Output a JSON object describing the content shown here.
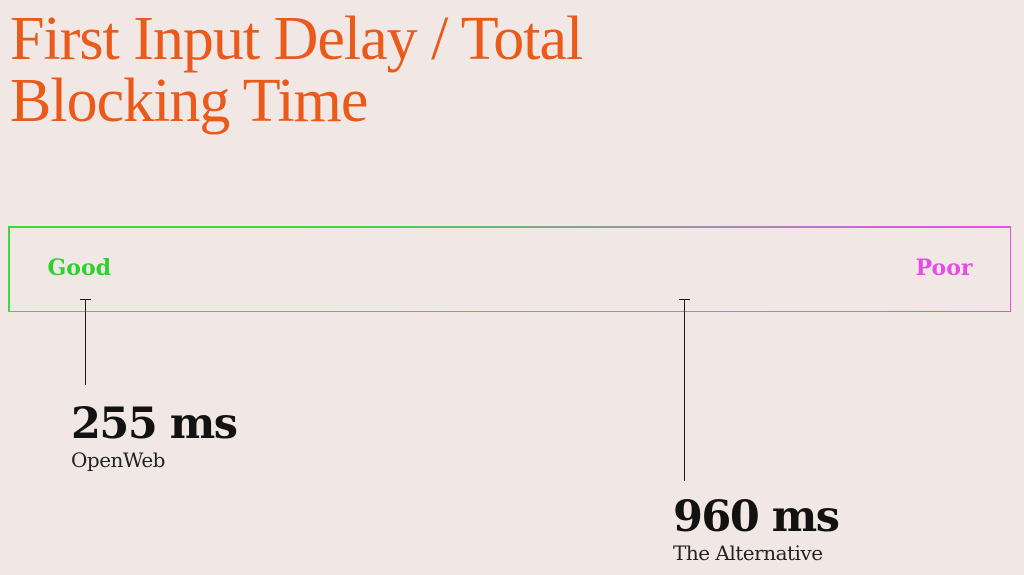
{
  "title": "First Input Delay / Total Blocking Time",
  "scale": {
    "good_label": "Good",
    "poor_label": "Poor",
    "good_color": "#2ed22e",
    "poor_color": "#e34fe2"
  },
  "markers": [
    {
      "value": "255 ms",
      "name": "OpenWeb"
    },
    {
      "value": "960 ms",
      "name": "The Alternative"
    }
  ],
  "colors": {
    "background": "#f1e8e5",
    "title": "#e95a1b",
    "text": "#121212"
  }
}
